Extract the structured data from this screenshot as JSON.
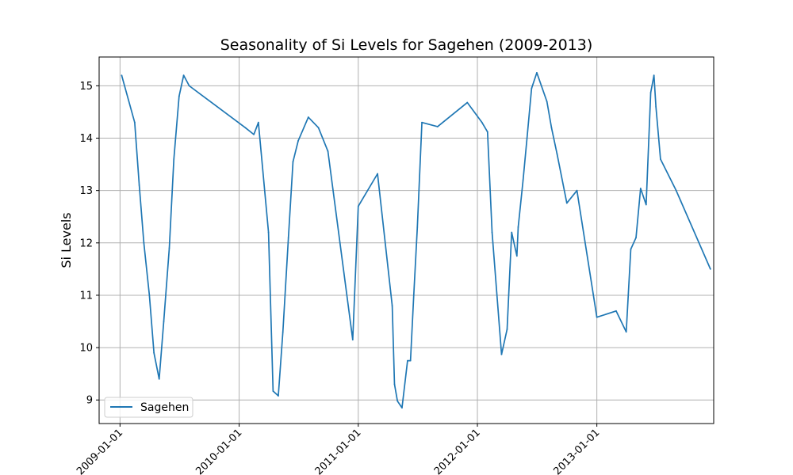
{
  "chart_data": {
    "type": "line",
    "title": "Seasonality of Si Levels for Sagehen (2009-2013)",
    "xlabel": "",
    "ylabel": "Si Levels",
    "grid": true,
    "legend_position": "lower-left",
    "xlim": [
      "2008-10-29",
      "2013-12-25"
    ],
    "ylim": [
      8.55,
      15.55
    ],
    "x_ticks": [
      "2009-01-01",
      "2010-01-01",
      "2011-01-01",
      "2012-01-01",
      "2013-01-01"
    ],
    "y_ticks": [
      9,
      10,
      11,
      12,
      13,
      14,
      15
    ],
    "colors": {
      "series": "#1f77b4",
      "grid": "#b0b0b0"
    },
    "series": [
      {
        "name": "Sagehen",
        "x": [
          "2009-01-06",
          "2009-02-15",
          "2009-03-01",
          "2009-03-15",
          "2009-04-01",
          "2009-04-15",
          "2009-05-01",
          "2009-05-15",
          "2009-06-01",
          "2009-06-15",
          "2009-07-01",
          "2009-07-15",
          "2009-08-01",
          "2010-01-20",
          "2010-02-15",
          "2010-03-01",
          "2010-04-01",
          "2010-04-15",
          "2010-05-01",
          "2010-05-15",
          "2010-06-01",
          "2010-06-15",
          "2010-07-01",
          "2010-08-01",
          "2010-09-01",
          "2010-09-30",
          "2010-12-15",
          "2011-01-01",
          "2011-03-01",
          "2011-04-15",
          "2011-04-22",
          "2011-05-01",
          "2011-05-15",
          "2011-06-01",
          "2011-06-10",
          "2011-06-20",
          "2011-07-01",
          "2011-07-15",
          "2011-09-01",
          "2011-12-01",
          "2012-01-15",
          "2012-02-01",
          "2012-02-15",
          "2012-03-15",
          "2012-04-01",
          "2012-04-15",
          "2012-05-01",
          "2012-05-05",
          "2012-05-20",
          "2012-06-01",
          "2012-06-15",
          "2012-07-01",
          "2012-08-01",
          "2012-08-15",
          "2012-09-01",
          "2012-10-01",
          "2012-11-01",
          "2013-01-01",
          "2013-03-01",
          "2013-04-01",
          "2013-04-15",
          "2013-05-01",
          "2013-05-15",
          "2013-06-01",
          "2013-06-15",
          "2013-06-25",
          "2013-07-01",
          "2013-07-15",
          "2013-09-01",
          "2013-09-15",
          "2013-12-15"
        ],
        "values": [
          15.2,
          14.3,
          13.1,
          12.0,
          11.0,
          9.9,
          9.4,
          10.5,
          11.9,
          13.6,
          14.8,
          15.2,
          15.0,
          14.2,
          14.07,
          14.3,
          12.2,
          9.17,
          9.08,
          10.3,
          12.1,
          13.55,
          13.95,
          14.4,
          14.2,
          13.75,
          10.15,
          12.7,
          13.32,
          10.8,
          9.3,
          8.98,
          8.85,
          9.75,
          9.75,
          11.0,
          12.3,
          14.3,
          14.22,
          14.68,
          14.3,
          14.12,
          12.2,
          9.87,
          10.35,
          12.2,
          11.75,
          12.3,
          13.2,
          14.0,
          14.95,
          15.25,
          14.7,
          14.2,
          13.7,
          12.76,
          13.0,
          10.58,
          10.7,
          10.3,
          11.88,
          12.1,
          13.04,
          12.73,
          14.87,
          15.2,
          14.6,
          13.6,
          13.0,
          12.8,
          11.5
        ]
      }
    ]
  }
}
